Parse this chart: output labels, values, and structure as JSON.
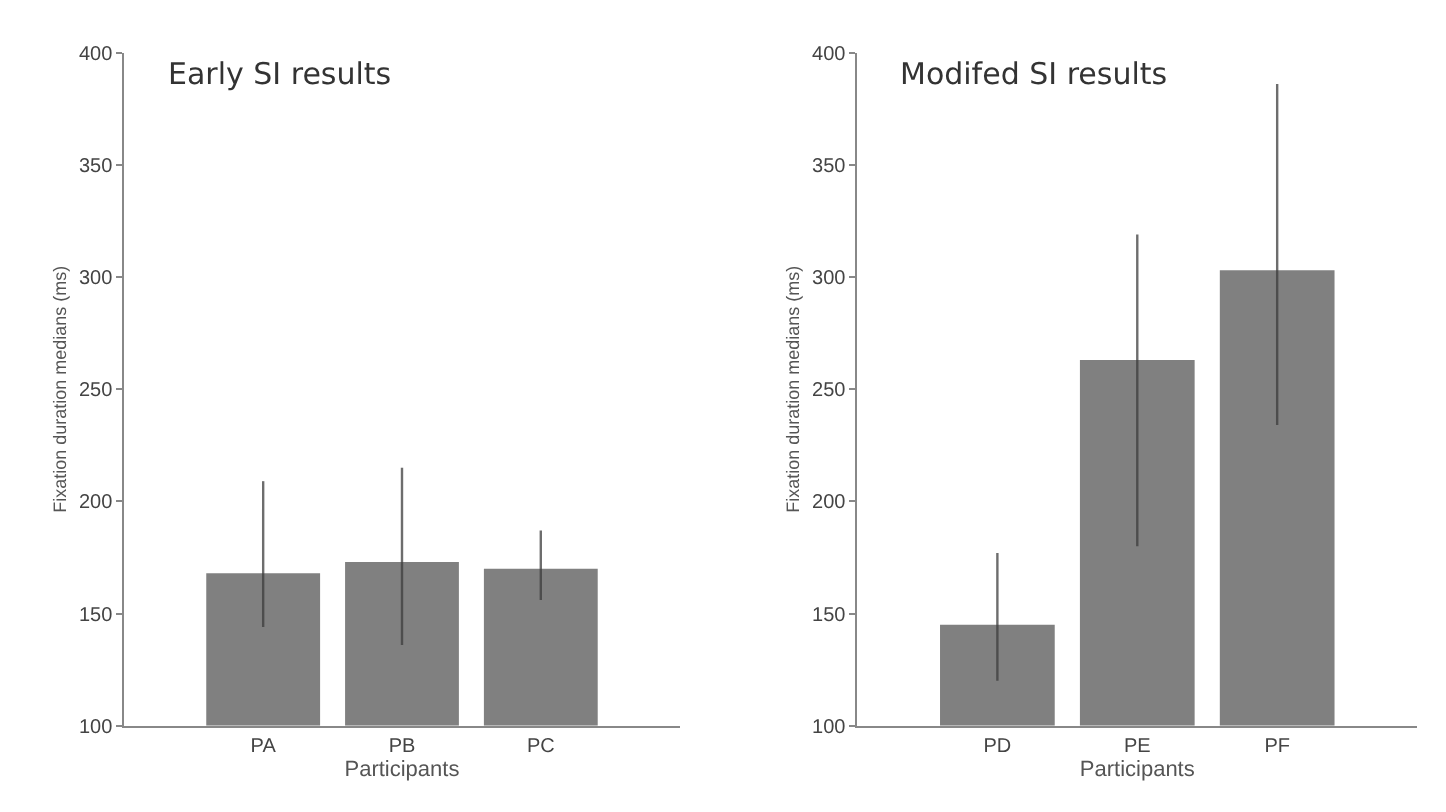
{
  "chart_data": [
    {
      "type": "bar",
      "title": "Early SI results",
      "xlabel": "Participants",
      "ylabel": "Fixation duration medians (ms)",
      "categories": [
        "PA",
        "PB",
        "PC"
      ],
      "values": [
        168,
        173,
        170
      ],
      "errors": [
        [
          144,
          209
        ],
        [
          136,
          215
        ],
        [
          156,
          187
        ]
      ],
      "color": "#808080",
      "ylim": [
        100,
        400
      ],
      "yticks": [
        100,
        150,
        200,
        250,
        300,
        350,
        400
      ]
    },
    {
      "type": "bar",
      "title": "Modifed SI results",
      "xlabel": "Participants",
      "ylabel": "Fixation duration medians (ms)",
      "categories": [
        "PD",
        "PE",
        "PF"
      ],
      "values": [
        145,
        263,
        303
      ],
      "errors": [
        [
          120,
          177
        ],
        [
          180,
          319
        ],
        [
          234,
          386
        ]
      ],
      "color": "#808080",
      "ylim": [
        100,
        400
      ],
      "yticks": [
        100,
        150,
        200,
        250,
        300,
        350,
        400
      ]
    }
  ]
}
